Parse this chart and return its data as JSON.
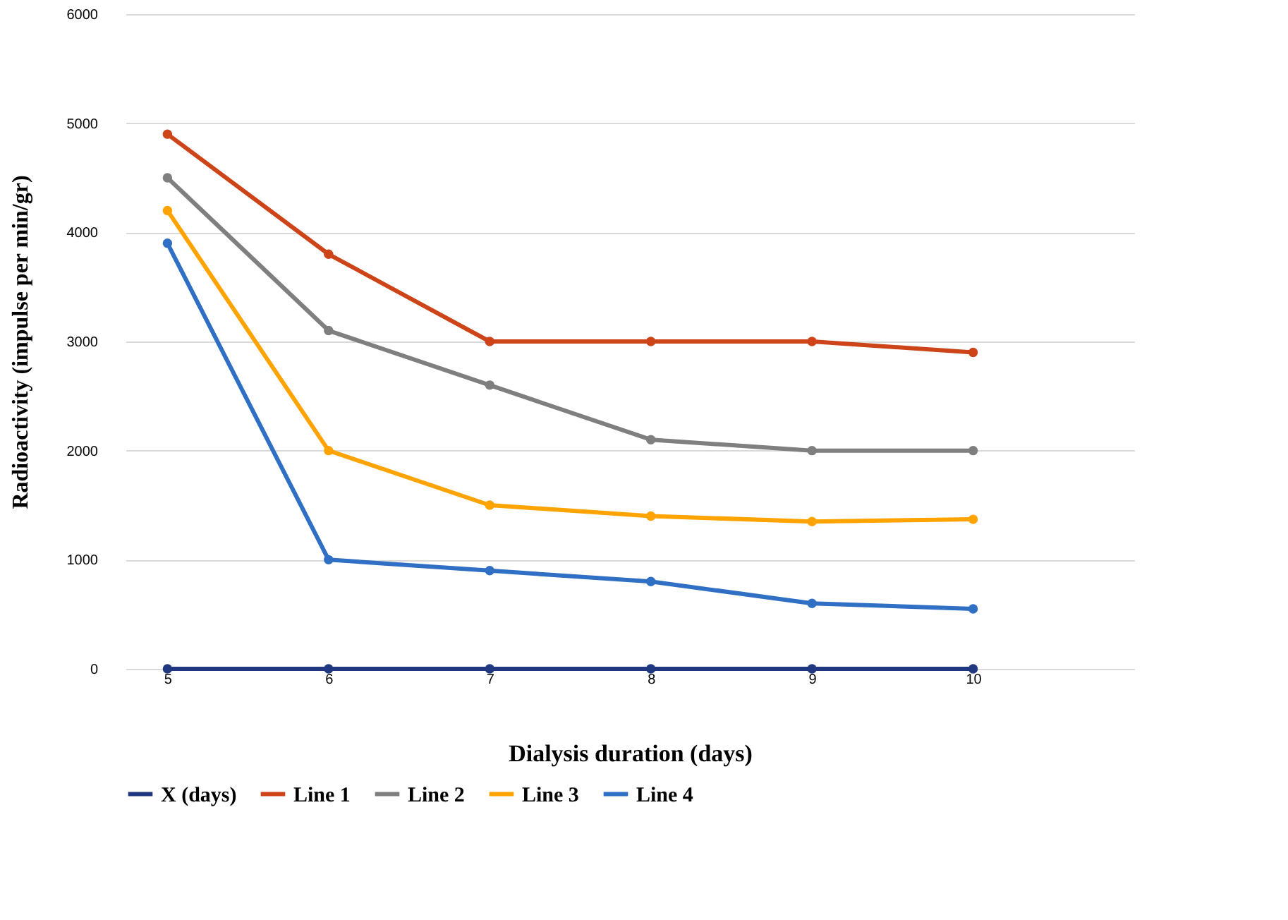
{
  "chart_data": {
    "type": "line",
    "xlabel": "Dialysis duration (days)",
    "ylabel": "Radioactivity (impulse per min/gr)",
    "x": [
      5,
      6,
      7,
      8,
      9,
      10
    ],
    "xlim": [
      4.74,
      11
    ],
    "xticks": [
      5,
      6,
      7,
      8,
      9,
      10
    ],
    "ylim": [
      0,
      6000
    ],
    "yticks": [
      0,
      1000,
      2000,
      3000,
      4000,
      5000,
      6000
    ],
    "grid": "y",
    "legend": "bottom",
    "marker": "circle",
    "line_style": "solid",
    "series": [
      {
        "name": "X (days)",
        "color": "#203880",
        "values": [
          0,
          0,
          0,
          0,
          0,
          0
        ]
      },
      {
        "name": "Line 1",
        "color": "#cc4418",
        "values": [
          4900,
          3800,
          3000,
          3000,
          3000,
          2900
        ]
      },
      {
        "name": "Line 2",
        "color": "#7f7f7f",
        "values": [
          4500,
          3100,
          2600,
          2100,
          2000,
          2000
        ]
      },
      {
        "name": "Line 3",
        "color": "#ffa300",
        "values": [
          4200,
          2000,
          1500,
          1400,
          1350,
          1370
        ]
      },
      {
        "name": "Line 4",
        "color": "#2f6fc4",
        "values": [
          3900,
          1000,
          900,
          800,
          600,
          550
        ]
      }
    ]
  }
}
